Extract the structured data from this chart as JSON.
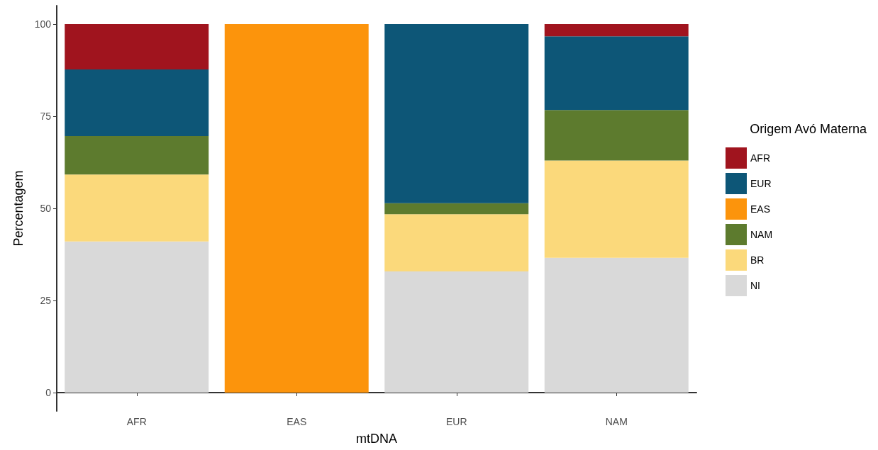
{
  "chart_data": {
    "type": "bar",
    "stacked": true,
    "xlabel": "mtDNA",
    "ylabel": "Percentagem",
    "legend_title": "Origem Avó Materna",
    "legend": "right",
    "grid": false,
    "categories": [
      "AFR",
      "EAS",
      "EUR",
      "NAM"
    ],
    "ylim": [
      -5,
      105
    ],
    "yticks": [
      0,
      25,
      50,
      75,
      100
    ],
    "series": [
      {
        "name": "NI",
        "color": "#d9d9d9",
        "values": [
          41.0,
          null,
          32.9,
          36.6
        ]
      },
      {
        "name": "BR",
        "color": "#fbd97b",
        "values": [
          18.2,
          null,
          15.5,
          26.4
        ]
      },
      {
        "name": "NAM",
        "color": "#5d7b2e",
        "values": [
          10.4,
          null,
          3.0,
          13.7
        ]
      },
      {
        "name": "EAS",
        "color": "#fc940c",
        "values": [
          null,
          100,
          null,
          null
        ]
      },
      {
        "name": "EUR",
        "color": "#0d5677",
        "values": [
          18.1,
          null,
          48.6,
          20.0
        ]
      },
      {
        "name": "AFR",
        "color": "#a0141e",
        "values": [
          12.3,
          null,
          null,
          3.3
        ]
      }
    ]
  }
}
